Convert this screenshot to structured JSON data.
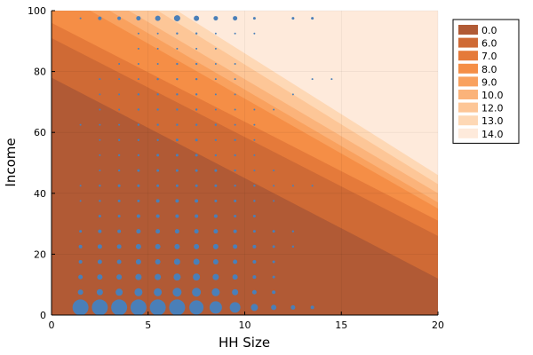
{
  "chart_data": {
    "type": "filled-contour-with-scatter",
    "title": "",
    "xlabel": "HH Size",
    "ylabel": "Income",
    "xlim": [
      0,
      20
    ],
    "ylim": [
      0,
      100
    ],
    "xticks": [
      0,
      5,
      10,
      15,
      20
    ],
    "yticks": [
      0,
      20,
      40,
      60,
      80,
      100
    ],
    "grid": true,
    "legend_position": "top-right",
    "contour_fill_levels": [
      {
        "label": "0.0",
        "color": "#b15a35",
        "boundary": [
          [
            0,
            78
          ],
          [
            20,
            12
          ]
        ]
      },
      {
        "label": "6.0",
        "color": "#cf6a35",
        "boundary": [
          [
            0,
            91
          ],
          [
            20,
            26
          ]
        ]
      },
      {
        "label": "7.0",
        "color": "#e57a3a",
        "boundary": [
          [
            0,
            96
          ],
          [
            20,
            31
          ]
        ]
      },
      {
        "label": "8.0",
        "color": "#f58e46",
        "boundary": [
          [
            2,
            100
          ],
          [
            20,
            35
          ]
        ]
      },
      {
        "label": "9.0",
        "color": "#f9a15e",
        "boundary": [
          [
            3,
            100
          ],
          [
            20,
            37
          ]
        ]
      },
      {
        "label": "10.0",
        "color": "#fbb37a",
        "boundary": [
          [
            4,
            100
          ],
          [
            20,
            40
          ]
        ]
      },
      {
        "label": "12.0",
        "color": "#fdc697",
        "boundary": [
          [
            5.5,
            100
          ],
          [
            20,
            43
          ]
        ]
      },
      {
        "label": "13.0",
        "color": "#fed8b5",
        "boundary": [
          [
            6.5,
            100
          ],
          [
            20,
            46
          ]
        ]
      },
      {
        "label": "14.0",
        "color": "#feeadb",
        "boundary": null
      }
    ],
    "scatter": {
      "color": "#4a7fb8",
      "points": [
        [
          1.5,
          2.5,
          9
        ],
        [
          2.5,
          2.5,
          9
        ],
        [
          3.5,
          2.5,
          9
        ],
        [
          4.5,
          2.5,
          9
        ],
        [
          5.5,
          2.5,
          9
        ],
        [
          6.5,
          2.5,
          9
        ],
        [
          7.5,
          2.5,
          8
        ],
        [
          8.5,
          2.5,
          7
        ],
        [
          9.5,
          2.5,
          6
        ],
        [
          10.5,
          2.5,
          4
        ],
        [
          11.5,
          2.5,
          3
        ],
        [
          12.5,
          2.5,
          2.5
        ],
        [
          13.5,
          2.5,
          2
        ],
        [
          1.5,
          7.5,
          3
        ],
        [
          2.5,
          7.5,
          3.5
        ],
        [
          3.5,
          7.5,
          4
        ],
        [
          4.5,
          7.5,
          4.5
        ],
        [
          5.5,
          7.5,
          4.5
        ],
        [
          6.5,
          7.5,
          5
        ],
        [
          7.5,
          7.5,
          5
        ],
        [
          8.5,
          7.5,
          4.5
        ],
        [
          9.5,
          7.5,
          3.5
        ],
        [
          10.5,
          7.5,
          2.5
        ],
        [
          11.5,
          7.5,
          2
        ],
        [
          1.5,
          12.5,
          2.5
        ],
        [
          2.5,
          12.5,
          3
        ],
        [
          3.5,
          12.5,
          3
        ],
        [
          4.5,
          12.5,
          3.5
        ],
        [
          5.5,
          12.5,
          3.5
        ],
        [
          6.5,
          12.5,
          4
        ],
        [
          7.5,
          12.5,
          4
        ],
        [
          8.5,
          12.5,
          3.5
        ],
        [
          9.5,
          12.5,
          3
        ],
        [
          10.5,
          12.5,
          2
        ],
        [
          11.5,
          12.5,
          1.5
        ],
        [
          1.5,
          17.5,
          2
        ],
        [
          2.5,
          17.5,
          2.5
        ],
        [
          3.5,
          17.5,
          2.5
        ],
        [
          4.5,
          17.5,
          3
        ],
        [
          5.5,
          17.5,
          3
        ],
        [
          6.5,
          17.5,
          3.5
        ],
        [
          7.5,
          17.5,
          3.5
        ],
        [
          8.5,
          17.5,
          3
        ],
        [
          9.5,
          17.5,
          2.5
        ],
        [
          10.5,
          17.5,
          2
        ],
        [
          11.5,
          17.5,
          1.5
        ],
        [
          1.5,
          22.5,
          2
        ],
        [
          2.5,
          22.5,
          2.5
        ],
        [
          3.5,
          22.5,
          2.5
        ],
        [
          4.5,
          22.5,
          3
        ],
        [
          5.5,
          22.5,
          3
        ],
        [
          6.5,
          22.5,
          3
        ],
        [
          7.5,
          22.5,
          3
        ],
        [
          8.5,
          22.5,
          3
        ],
        [
          9.5,
          22.5,
          2.5
        ],
        [
          10.5,
          22.5,
          2
        ],
        [
          11.5,
          22.5,
          1.5
        ],
        [
          12.5,
          22.5,
          1.2
        ],
        [
          1.5,
          27.5,
          1.5
        ],
        [
          2.5,
          27.5,
          2
        ],
        [
          3.5,
          27.5,
          2
        ],
        [
          4.5,
          27.5,
          2.5
        ],
        [
          5.5,
          27.5,
          2.5
        ],
        [
          6.5,
          27.5,
          2.5
        ],
        [
          7.5,
          27.5,
          2.5
        ],
        [
          8.5,
          27.5,
          2.5
        ],
        [
          9.5,
          27.5,
          2
        ],
        [
          10.5,
          27.5,
          1.5
        ],
        [
          11.5,
          27.5,
          1.5
        ],
        [
          12.5,
          27.5,
          1.2
        ],
        [
          2.5,
          32.5,
          1.5
        ],
        [
          3.5,
          32.5,
          1.5
        ],
        [
          4.5,
          32.5,
          2
        ],
        [
          5.5,
          32.5,
          2
        ],
        [
          6.5,
          32.5,
          2
        ],
        [
          7.5,
          32.5,
          2
        ],
        [
          8.5,
          32.5,
          2
        ],
        [
          9.5,
          32.5,
          1.5
        ],
        [
          10.5,
          32.5,
          1.5
        ],
        [
          1.5,
          37.5,
          1
        ],
        [
          2.5,
          37.5,
          1.2
        ],
        [
          3.5,
          37.5,
          1.5
        ],
        [
          4.5,
          37.5,
          1.5
        ],
        [
          5.5,
          37.5,
          2
        ],
        [
          6.5,
          37.5,
          2
        ],
        [
          7.5,
          37.5,
          2
        ],
        [
          8.5,
          37.5,
          1.5
        ],
        [
          9.5,
          37.5,
          1.5
        ],
        [
          10.5,
          37.5,
          1.2
        ],
        [
          11.5,
          37.5,
          1
        ],
        [
          1.5,
          42.5,
          1
        ],
        [
          2.5,
          42.5,
          1.2
        ],
        [
          3.5,
          42.5,
          1.5
        ],
        [
          4.5,
          42.5,
          1.5
        ],
        [
          5.5,
          42.5,
          1.5
        ],
        [
          6.5,
          42.5,
          1.5
        ],
        [
          7.5,
          42.5,
          1.5
        ],
        [
          8.5,
          42.5,
          1.5
        ],
        [
          9.5,
          42.5,
          1.2
        ],
        [
          10.5,
          42.5,
          1.2
        ],
        [
          11.5,
          42.5,
          1
        ],
        [
          12.5,
          42.5,
          1
        ],
        [
          13.5,
          42.5,
          1
        ],
        [
          2.5,
          47.5,
          1
        ],
        [
          3.5,
          47.5,
          1.2
        ],
        [
          4.5,
          47.5,
          1.5
        ],
        [
          5.5,
          47.5,
          1.5
        ],
        [
          6.5,
          47.5,
          1.5
        ],
        [
          7.5,
          47.5,
          1.5
        ],
        [
          8.5,
          47.5,
          1.5
        ],
        [
          9.5,
          47.5,
          1.2
        ],
        [
          10.5,
          47.5,
          1
        ],
        [
          11.5,
          47.5,
          1
        ],
        [
          2.5,
          52.5,
          1
        ],
        [
          3.5,
          52.5,
          1.2
        ],
        [
          4.5,
          52.5,
          1.2
        ],
        [
          5.5,
          52.5,
          1.5
        ],
        [
          6.5,
          52.5,
          1.5
        ],
        [
          7.5,
          52.5,
          1.5
        ],
        [
          8.5,
          52.5,
          1.2
        ],
        [
          9.5,
          52.5,
          1.2
        ],
        [
          10.5,
          52.5,
          1
        ],
        [
          2.5,
          57.5,
          1
        ],
        [
          3.5,
          57.5,
          1.2
        ],
        [
          4.5,
          57.5,
          1.2
        ],
        [
          5.5,
          57.5,
          1.2
        ],
        [
          6.5,
          57.5,
          1.5
        ],
        [
          7.5,
          57.5,
          1.5
        ],
        [
          8.5,
          57.5,
          1.2
        ],
        [
          9.5,
          57.5,
          1.2
        ],
        [
          10.5,
          57.5,
          1
        ],
        [
          1.5,
          62.5,
          1
        ],
        [
          2.5,
          62.5,
          1
        ],
        [
          3.5,
          62.5,
          1
        ],
        [
          4.5,
          62.5,
          1.2
        ],
        [
          5.5,
          62.5,
          1.2
        ],
        [
          6.5,
          62.5,
          1.2
        ],
        [
          7.5,
          62.5,
          1.2
        ],
        [
          8.5,
          62.5,
          1.2
        ],
        [
          9.5,
          62.5,
          1
        ],
        [
          10.5,
          62.5,
          1
        ],
        [
          2.5,
          67.5,
          1
        ],
        [
          3.5,
          67.5,
          1
        ],
        [
          4.5,
          67.5,
          1.2
        ],
        [
          5.5,
          67.5,
          1.2
        ],
        [
          6.5,
          67.5,
          1.2
        ],
        [
          7.5,
          67.5,
          1.2
        ],
        [
          8.5,
          67.5,
          1
        ],
        [
          9.5,
          67.5,
          1
        ],
        [
          10.5,
          67.5,
          1
        ],
        [
          11.5,
          67.5,
          1
        ],
        [
          2.5,
          72.5,
          1
        ],
        [
          3.5,
          72.5,
          1
        ],
        [
          4.5,
          72.5,
          1.2
        ],
        [
          5.5,
          72.5,
          1.2
        ],
        [
          6.5,
          72.5,
          1.2
        ],
        [
          7.5,
          72.5,
          1.2
        ],
        [
          8.5,
          72.5,
          1
        ],
        [
          9.5,
          72.5,
          1
        ],
        [
          12.5,
          72.5,
          1
        ],
        [
          2.5,
          77.5,
          1
        ],
        [
          3.5,
          77.5,
          1
        ],
        [
          4.5,
          77.5,
          1
        ],
        [
          5.5,
          77.5,
          1.2
        ],
        [
          6.5,
          77.5,
          1.2
        ],
        [
          7.5,
          77.5,
          1.2
        ],
        [
          8.5,
          77.5,
          1
        ],
        [
          9.5,
          77.5,
          1
        ],
        [
          13.5,
          77.5,
          1
        ],
        [
          14.5,
          77.5,
          1
        ],
        [
          3.5,
          82.5,
          1
        ],
        [
          4.5,
          82.5,
          1
        ],
        [
          5.5,
          82.5,
          1
        ],
        [
          6.5,
          82.5,
          1.2
        ],
        [
          7.5,
          82.5,
          1.2
        ],
        [
          8.5,
          82.5,
          1
        ],
        [
          9.5,
          82.5,
          1
        ],
        [
          4.5,
          87.5,
          1
        ],
        [
          5.5,
          87.5,
          1
        ],
        [
          6.5,
          87.5,
          1
        ],
        [
          7.5,
          87.5,
          1
        ],
        [
          8.5,
          87.5,
          1
        ],
        [
          4.5,
          92.5,
          1
        ],
        [
          5.5,
          92.5,
          1
        ],
        [
          6.5,
          92.5,
          1.2
        ],
        [
          7.5,
          92.5,
          1.2
        ],
        [
          8.5,
          92.5,
          1
        ],
        [
          9.5,
          92.5,
          1
        ],
        [
          10.5,
          92.5,
          1
        ],
        [
          1.5,
          97.5,
          1
        ],
        [
          2.5,
          97.5,
          2
        ],
        [
          3.5,
          97.5,
          2
        ],
        [
          4.5,
          97.5,
          2.5
        ],
        [
          5.5,
          97.5,
          3
        ],
        [
          6.5,
          97.5,
          3.5
        ],
        [
          7.5,
          97.5,
          3
        ],
        [
          8.5,
          97.5,
          2.5
        ],
        [
          9.5,
          97.5,
          2.5
        ],
        [
          10.5,
          97.5,
          1.5
        ],
        [
          12.5,
          97.5,
          1.5
        ],
        [
          13.5,
          97.5,
          1.5
        ]
      ]
    }
  }
}
